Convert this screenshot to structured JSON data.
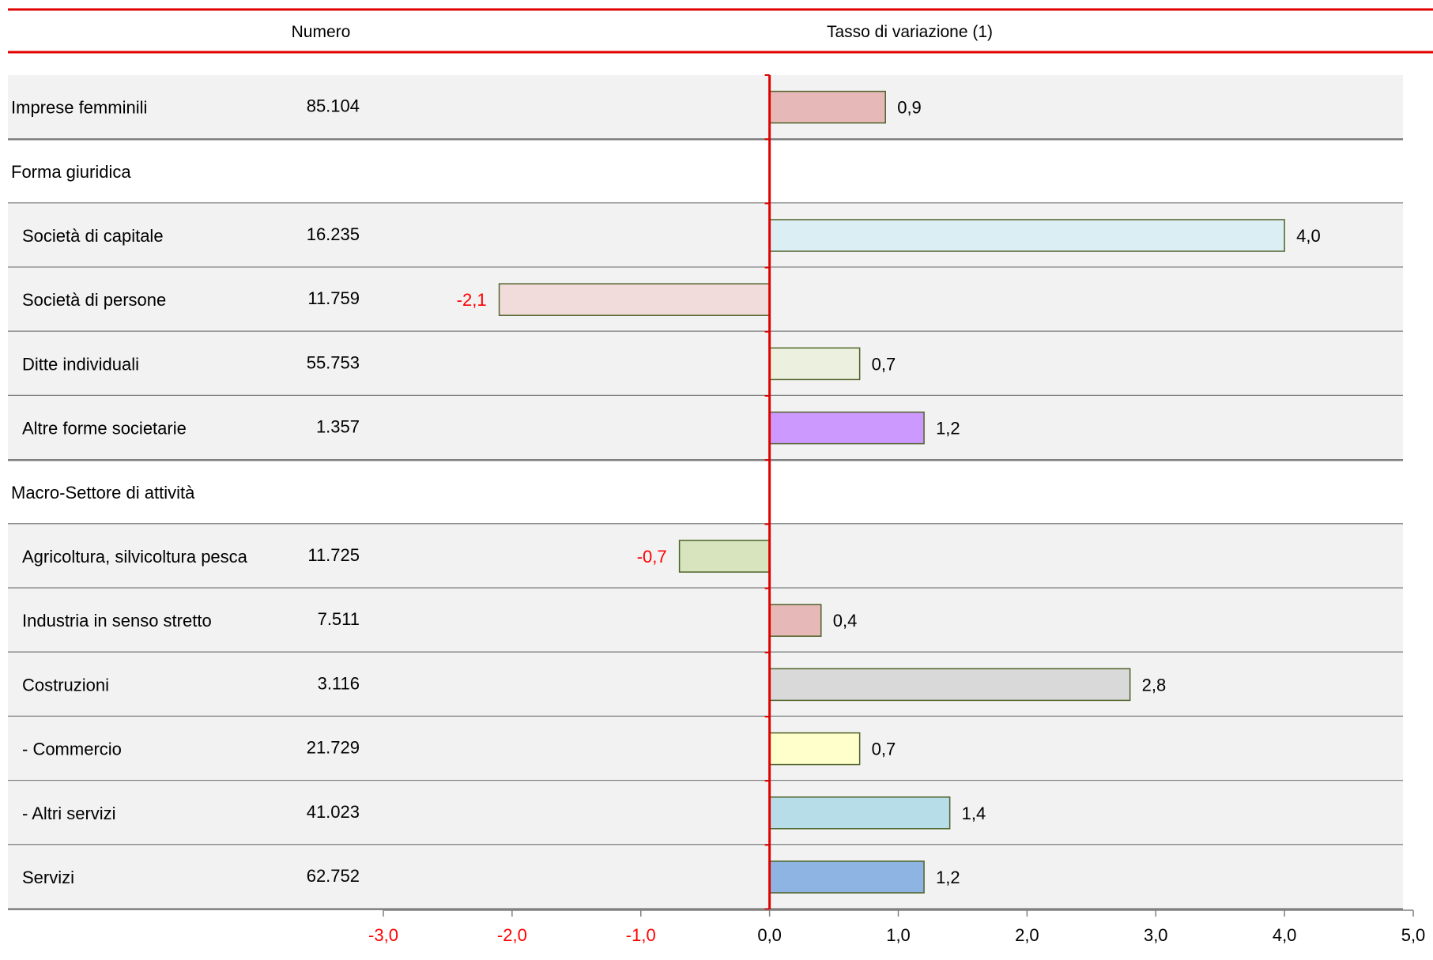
{
  "header": {
    "col_numero": "Numero",
    "col_tasso": "Tasso di variazione (1)"
  },
  "colors": {
    "accent_red": "#e00000",
    "row_band": "#f2f2f2",
    "separator": "#7f7f7f",
    "bar_border": "#4f6228",
    "negative_text": "#ff0000"
  },
  "chart_data": {
    "type": "bar",
    "orientation": "horizontal",
    "title": "",
    "xlabel": "",
    "ylabel": "",
    "xlim": [
      -3.0,
      5.0
    ],
    "x_ticks": [
      -3,
      -2,
      -1,
      0,
      1,
      2,
      3,
      4,
      5
    ],
    "x_tick_labels": [
      "-3,0",
      "-2,0",
      "-1,0",
      "0,0",
      "1,0",
      "2,0",
      "3,0",
      "4,0",
      "5,0"
    ],
    "grid": false,
    "legend": "none",
    "rows": [
      {
        "label": "Imprese femminili",
        "numero": "85.104",
        "value": 0.9,
        "value_label": "0,9",
        "indent": false,
        "section": false,
        "shaded": true,
        "color": "#e6b9b8"
      },
      {
        "label": "Forma giuridica",
        "numero": "",
        "value": null,
        "value_label": "",
        "indent": false,
        "section": true,
        "shaded": false,
        "color": ""
      },
      {
        "label": "Società di capitale",
        "numero": "16.235",
        "value": 4.0,
        "value_label": "4,0",
        "indent": true,
        "section": false,
        "shaded": true,
        "color": "#dbeef4"
      },
      {
        "label": "Società di persone",
        "numero": "11.759",
        "value": -2.1,
        "value_label": "-2,1",
        "indent": true,
        "section": false,
        "shaded": true,
        "color": "#f2dcdb"
      },
      {
        "label": "Ditte individuali",
        "numero": "55.753",
        "value": 0.7,
        "value_label": "0,7",
        "indent": true,
        "section": false,
        "shaded": true,
        "color": "#ebf1de"
      },
      {
        "label": "Altre forme societarie",
        "numero": "1.357",
        "value": 1.2,
        "value_label": "1,2",
        "indent": true,
        "section": false,
        "shaded": true,
        "color": "#cc99ff"
      },
      {
        "label": "Macro-Settore di attività",
        "numero": "",
        "value": null,
        "value_label": "",
        "indent": false,
        "section": true,
        "shaded": false,
        "color": ""
      },
      {
        "label": "Agricoltura, silvicoltura pesca",
        "numero": "11.725",
        "value": -0.7,
        "value_label": "-0,7",
        "indent": true,
        "section": false,
        "shaded": true,
        "color": "#d7e4bd"
      },
      {
        "label": "Industria in senso stretto",
        "numero": "7.511",
        "value": 0.4,
        "value_label": "0,4",
        "indent": true,
        "section": false,
        "shaded": true,
        "color": "#e6b9b8"
      },
      {
        "label": "Costruzioni",
        "numero": "3.116",
        "value": 2.8,
        "value_label": "2,8",
        "indent": true,
        "section": false,
        "shaded": true,
        "color": "#d9d9d9"
      },
      {
        "label": " - Commercio",
        "numero": "21.729",
        "value": 0.7,
        "value_label": "0,7",
        "indent": true,
        "section": false,
        "shaded": true,
        "color": "#ffffcc"
      },
      {
        "label": " - Altri servizi",
        "numero": "41.023",
        "value": 1.4,
        "value_label": "1,4",
        "indent": true,
        "section": false,
        "shaded": true,
        "color": "#b7dee8"
      },
      {
        "label": "Servizi",
        "numero": "62.752",
        "value": 1.2,
        "value_label": "1,2",
        "indent": true,
        "section": false,
        "shaded": true,
        "color": "#8eb4e3"
      }
    ]
  }
}
